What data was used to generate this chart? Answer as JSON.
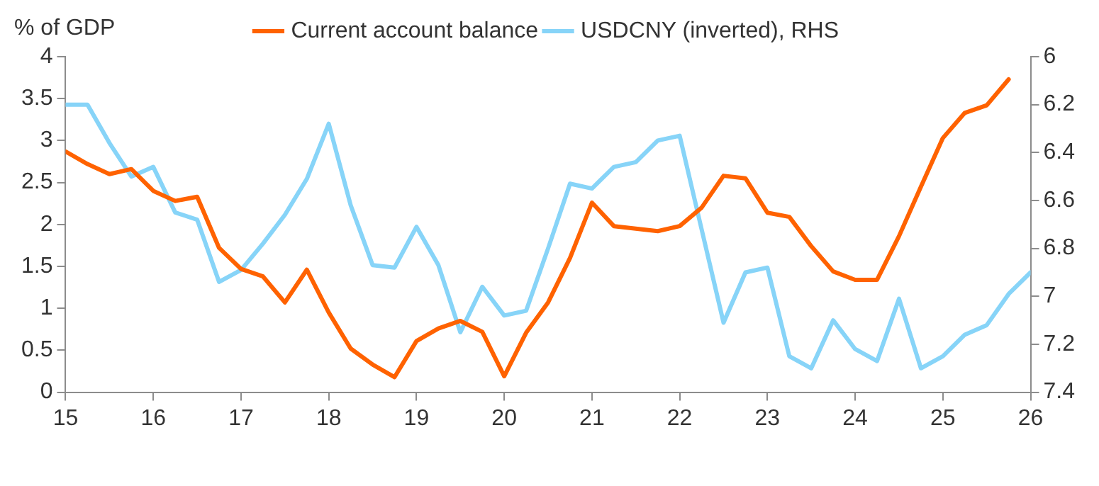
{
  "chart_data": {
    "type": "line",
    "ylabel": "% of GDP",
    "legend": "top",
    "grid": false,
    "marker": "none",
    "line_style": "solid",
    "xlim": [
      15,
      26
    ],
    "xticks": [
      15,
      16,
      17,
      18,
      19,
      20,
      21,
      22,
      23,
      24,
      25,
      26
    ],
    "ylim": [
      0,
      4
    ],
    "yticks": [
      0,
      0.5,
      1,
      1.5,
      2,
      2.5,
      3,
      3.5,
      4
    ],
    "y2lim": [
      7.4,
      6
    ],
    "y2ticks": [
      6,
      6.2,
      6.4,
      6.6,
      6.8,
      7,
      7.2,
      7.4
    ],
    "series": [
      {
        "name": "Current account balance",
        "color": "#ff6200",
        "x": [
          15,
          15.25,
          15.5,
          15.75,
          16,
          16.25,
          16.5,
          16.75,
          17,
          17.25,
          17.5,
          17.75,
          18,
          18.25,
          18.5,
          18.75,
          19,
          19.25,
          19.5,
          19.75,
          20,
          20.25,
          20.5,
          20.75,
          21,
          21.25,
          21.5,
          21.75,
          22,
          22.25,
          22.5,
          22.75,
          23,
          23.25,
          23.5,
          23.75,
          24,
          24.25,
          24.5,
          24.75,
          25,
          25.25,
          25.5,
          25.75
        ],
        "values": [
          2.87,
          2.72,
          2.6,
          2.66,
          2.4,
          2.28,
          2.33,
          1.72,
          1.47,
          1.38,
          1.07,
          1.46,
          0.95,
          0.52,
          0.33,
          0.18,
          0.61,
          0.76,
          0.85,
          0.72,
          0.19,
          0.71,
          1.07,
          1.6,
          2.26,
          1.98,
          1.95,
          1.92,
          1.98,
          2.2,
          2.58,
          2.55,
          2.14,
          2.09,
          1.74,
          1.44,
          1.34,
          1.34,
          1.86,
          2.45,
          3.03,
          3.33,
          3.42,
          3.73
        ]
      },
      {
        "name": "USDCNY (inverted), RHS",
        "color": "#87d4f8",
        "axis": "y2",
        "x": [
          15,
          15.25,
          15.5,
          15.75,
          16,
          16.25,
          16.5,
          16.75,
          17,
          17.25,
          17.5,
          17.75,
          18,
          18.25,
          18.5,
          18.75,
          19,
          19.25,
          19.5,
          19.75,
          20,
          20.25,
          20.5,
          20.75,
          21,
          21.25,
          21.5,
          21.75,
          22,
          22.25,
          22.5,
          22.75,
          23,
          23.25,
          23.5,
          23.75,
          24,
          24.25,
          24.5,
          24.75,
          25,
          25.25,
          25.5,
          25.75,
          26
        ],
        "values": [
          6.2,
          6.2,
          6.36,
          6.5,
          6.46,
          6.65,
          6.68,
          6.94,
          6.89,
          6.78,
          6.66,
          6.51,
          6.28,
          6.62,
          6.87,
          6.88,
          6.71,
          6.87,
          7.15,
          6.96,
          7.08,
          7.06,
          6.8,
          6.53,
          6.55,
          6.46,
          6.44,
          6.35,
          6.33,
          6.72,
          7.11,
          6.9,
          6.88,
          7.25,
          7.3,
          7.1,
          7.22,
          7.27,
          7.01,
          7.3,
          7.25,
          7.16,
          7.12,
          6.99,
          6.9
        ]
      }
    ]
  }
}
